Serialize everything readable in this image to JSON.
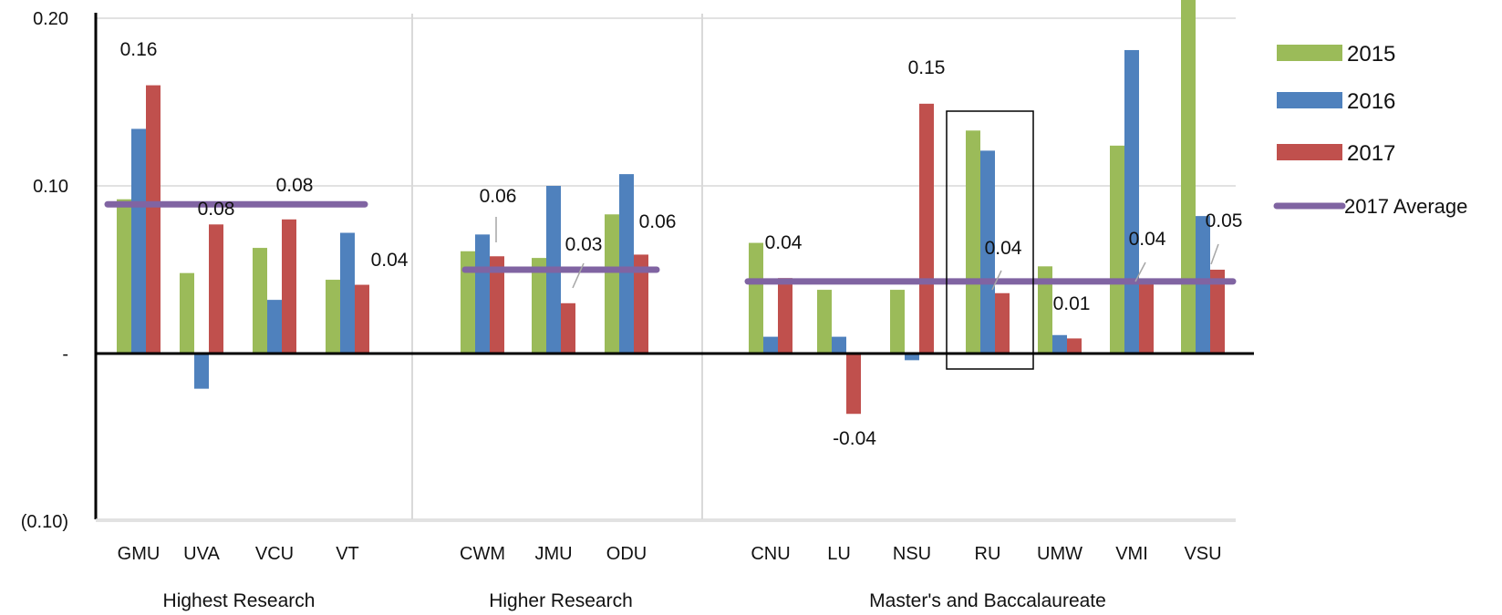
{
  "chart_data": {
    "type": "bar",
    "title": "",
    "xlabel": "",
    "ylabel": "",
    "ylim": [
      -0.1,
      0.2
    ],
    "y_ticks": [
      {
        "value": 0.2,
        "label": "0.20"
      },
      {
        "value": 0.1,
        "label": "0.10"
      },
      {
        "value": 0.0,
        "label": "-"
      },
      {
        "value": -0.1,
        "label": "(0.10)"
      }
    ],
    "grid": "horizontal",
    "legend_position": "right",
    "colors": {
      "2015": "#9bbb59",
      "2016": "#4f81bd",
      "2017": "#c0504d",
      "average": "#8064a2"
    },
    "groups": [
      {
        "name": "Highest Research",
        "categories": [
          "GMU",
          "UVA",
          "VCU",
          "VT"
        ],
        "average_2017": 0.089
      },
      {
        "name": "Higher Research",
        "categories": [
          "CWM",
          "JMU",
          "ODU"
        ],
        "average_2017": 0.05
      },
      {
        "name": "Master's and Baccalaureate",
        "categories": [
          "CNU",
          "LU",
          "NSU",
          "RU",
          "UMW",
          "VMI",
          "VSU"
        ],
        "average_2017": 0.043
      }
    ],
    "categories": [
      "GMU",
      "UVA",
      "VCU",
      "VT",
      "CWM",
      "JMU",
      "ODU",
      "CNU",
      "LU",
      "NSU",
      "RU",
      "UMW",
      "VMI",
      "VSU"
    ],
    "series": [
      {
        "name": "2015",
        "values": [
          0.092,
          0.048,
          0.063,
          0.044,
          0.061,
          0.057,
          0.083,
          0.066,
          0.038,
          0.038,
          0.133,
          0.052,
          0.124,
          0.215
        ]
      },
      {
        "name": "2016",
        "values": [
          0.134,
          -0.021,
          0.032,
          0.072,
          0.071,
          0.1,
          0.107,
          0.01,
          0.01,
          -0.004,
          0.121,
          0.011,
          0.181,
          0.082
        ]
      },
      {
        "name": "2017",
        "values": [
          0.16,
          0.077,
          0.08,
          0.041,
          0.058,
          0.03,
          0.059,
          0.045,
          -0.036,
          0.149,
          0.036,
          0.009,
          0.043,
          0.05
        ]
      }
    ],
    "average_series_name": "2017 Average",
    "data_labels": [
      {
        "category": "GMU",
        "text": "0.16"
      },
      {
        "category": "UVA",
        "text": "0.08"
      },
      {
        "category": "VCU",
        "text": "0.08"
      },
      {
        "category": "VT",
        "text": "0.04"
      },
      {
        "category": "CWM",
        "text": "0.06"
      },
      {
        "category": "JMU",
        "text": "0.03"
      },
      {
        "category": "ODU",
        "text": "0.06"
      },
      {
        "category": "CNU",
        "text": "0.04"
      },
      {
        "category": "LU",
        "text": "-0.04"
      },
      {
        "category": "NSU",
        "text": "0.15"
      },
      {
        "category": "RU",
        "text": "0.04"
      },
      {
        "category": "UMW",
        "text": "0.01"
      },
      {
        "category": "VMI",
        "text": "0.04"
      },
      {
        "category": "VSU",
        "text": "0.05"
      }
    ],
    "highlight_category": "RU"
  }
}
